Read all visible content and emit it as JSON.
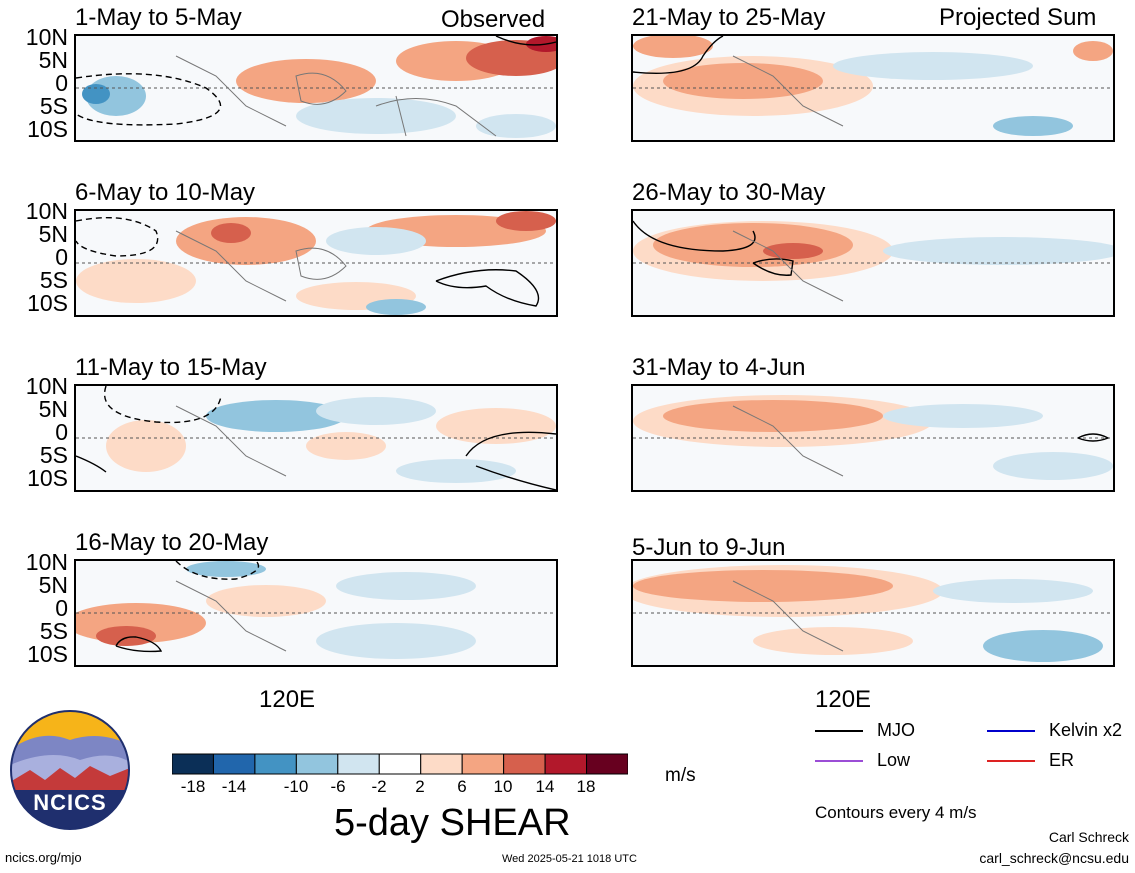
{
  "header": {
    "left_tag": "Observed",
    "right_tag": "Projected Sum"
  },
  "lat_labels": [
    "10N",
    "5N",
    "0",
    "5S",
    "10S"
  ],
  "lon_label": "120E",
  "left_panels": [
    {
      "title": "1-May to 5-May"
    },
    {
      "title": "6-May to 10-May"
    },
    {
      "title": "11-May to 15-May"
    },
    {
      "title": "16-May to 20-May"
    }
  ],
  "right_panels": [
    {
      "title": "21-May to 25-May"
    },
    {
      "title": "26-May to 30-May"
    },
    {
      "title": "31-May to 4-Jun"
    },
    {
      "title": "5-Jun to 9-Jun"
    }
  ],
  "colorbar": {
    "ticks": [
      "-18",
      "-14",
      "-10",
      "-6",
      "-2",
      "2",
      "6",
      "10",
      "14",
      "18"
    ],
    "colors": [
      "#0b2f57",
      "#2166ac",
      "#4393c3",
      "#92c5de",
      "#d1e5f0",
      "#ffffff",
      "#fddbc7",
      "#f4a582",
      "#d6604d",
      "#b2182b",
      "#67001f"
    ],
    "units": "m/s"
  },
  "title": "5-day SHEAR",
  "legend": {
    "items": [
      {
        "label": "MJO",
        "color": "#000000"
      },
      {
        "label": "Kelvin x2",
        "color": "#0000cc"
      },
      {
        "label": "Low",
        "color": "#9b4dd6"
      },
      {
        "label": "ER",
        "color": "#dd2222"
      }
    ],
    "note": "Contours every 4 m/s"
  },
  "logo": {
    "text": "NCICS"
  },
  "footer": {
    "url": "ncics.org/mjo",
    "timestamp": "Wed 2025-05-21 1018 UTC",
    "author": "Carl Schreck",
    "email": "carl_schreck@ncsu.edu"
  }
}
